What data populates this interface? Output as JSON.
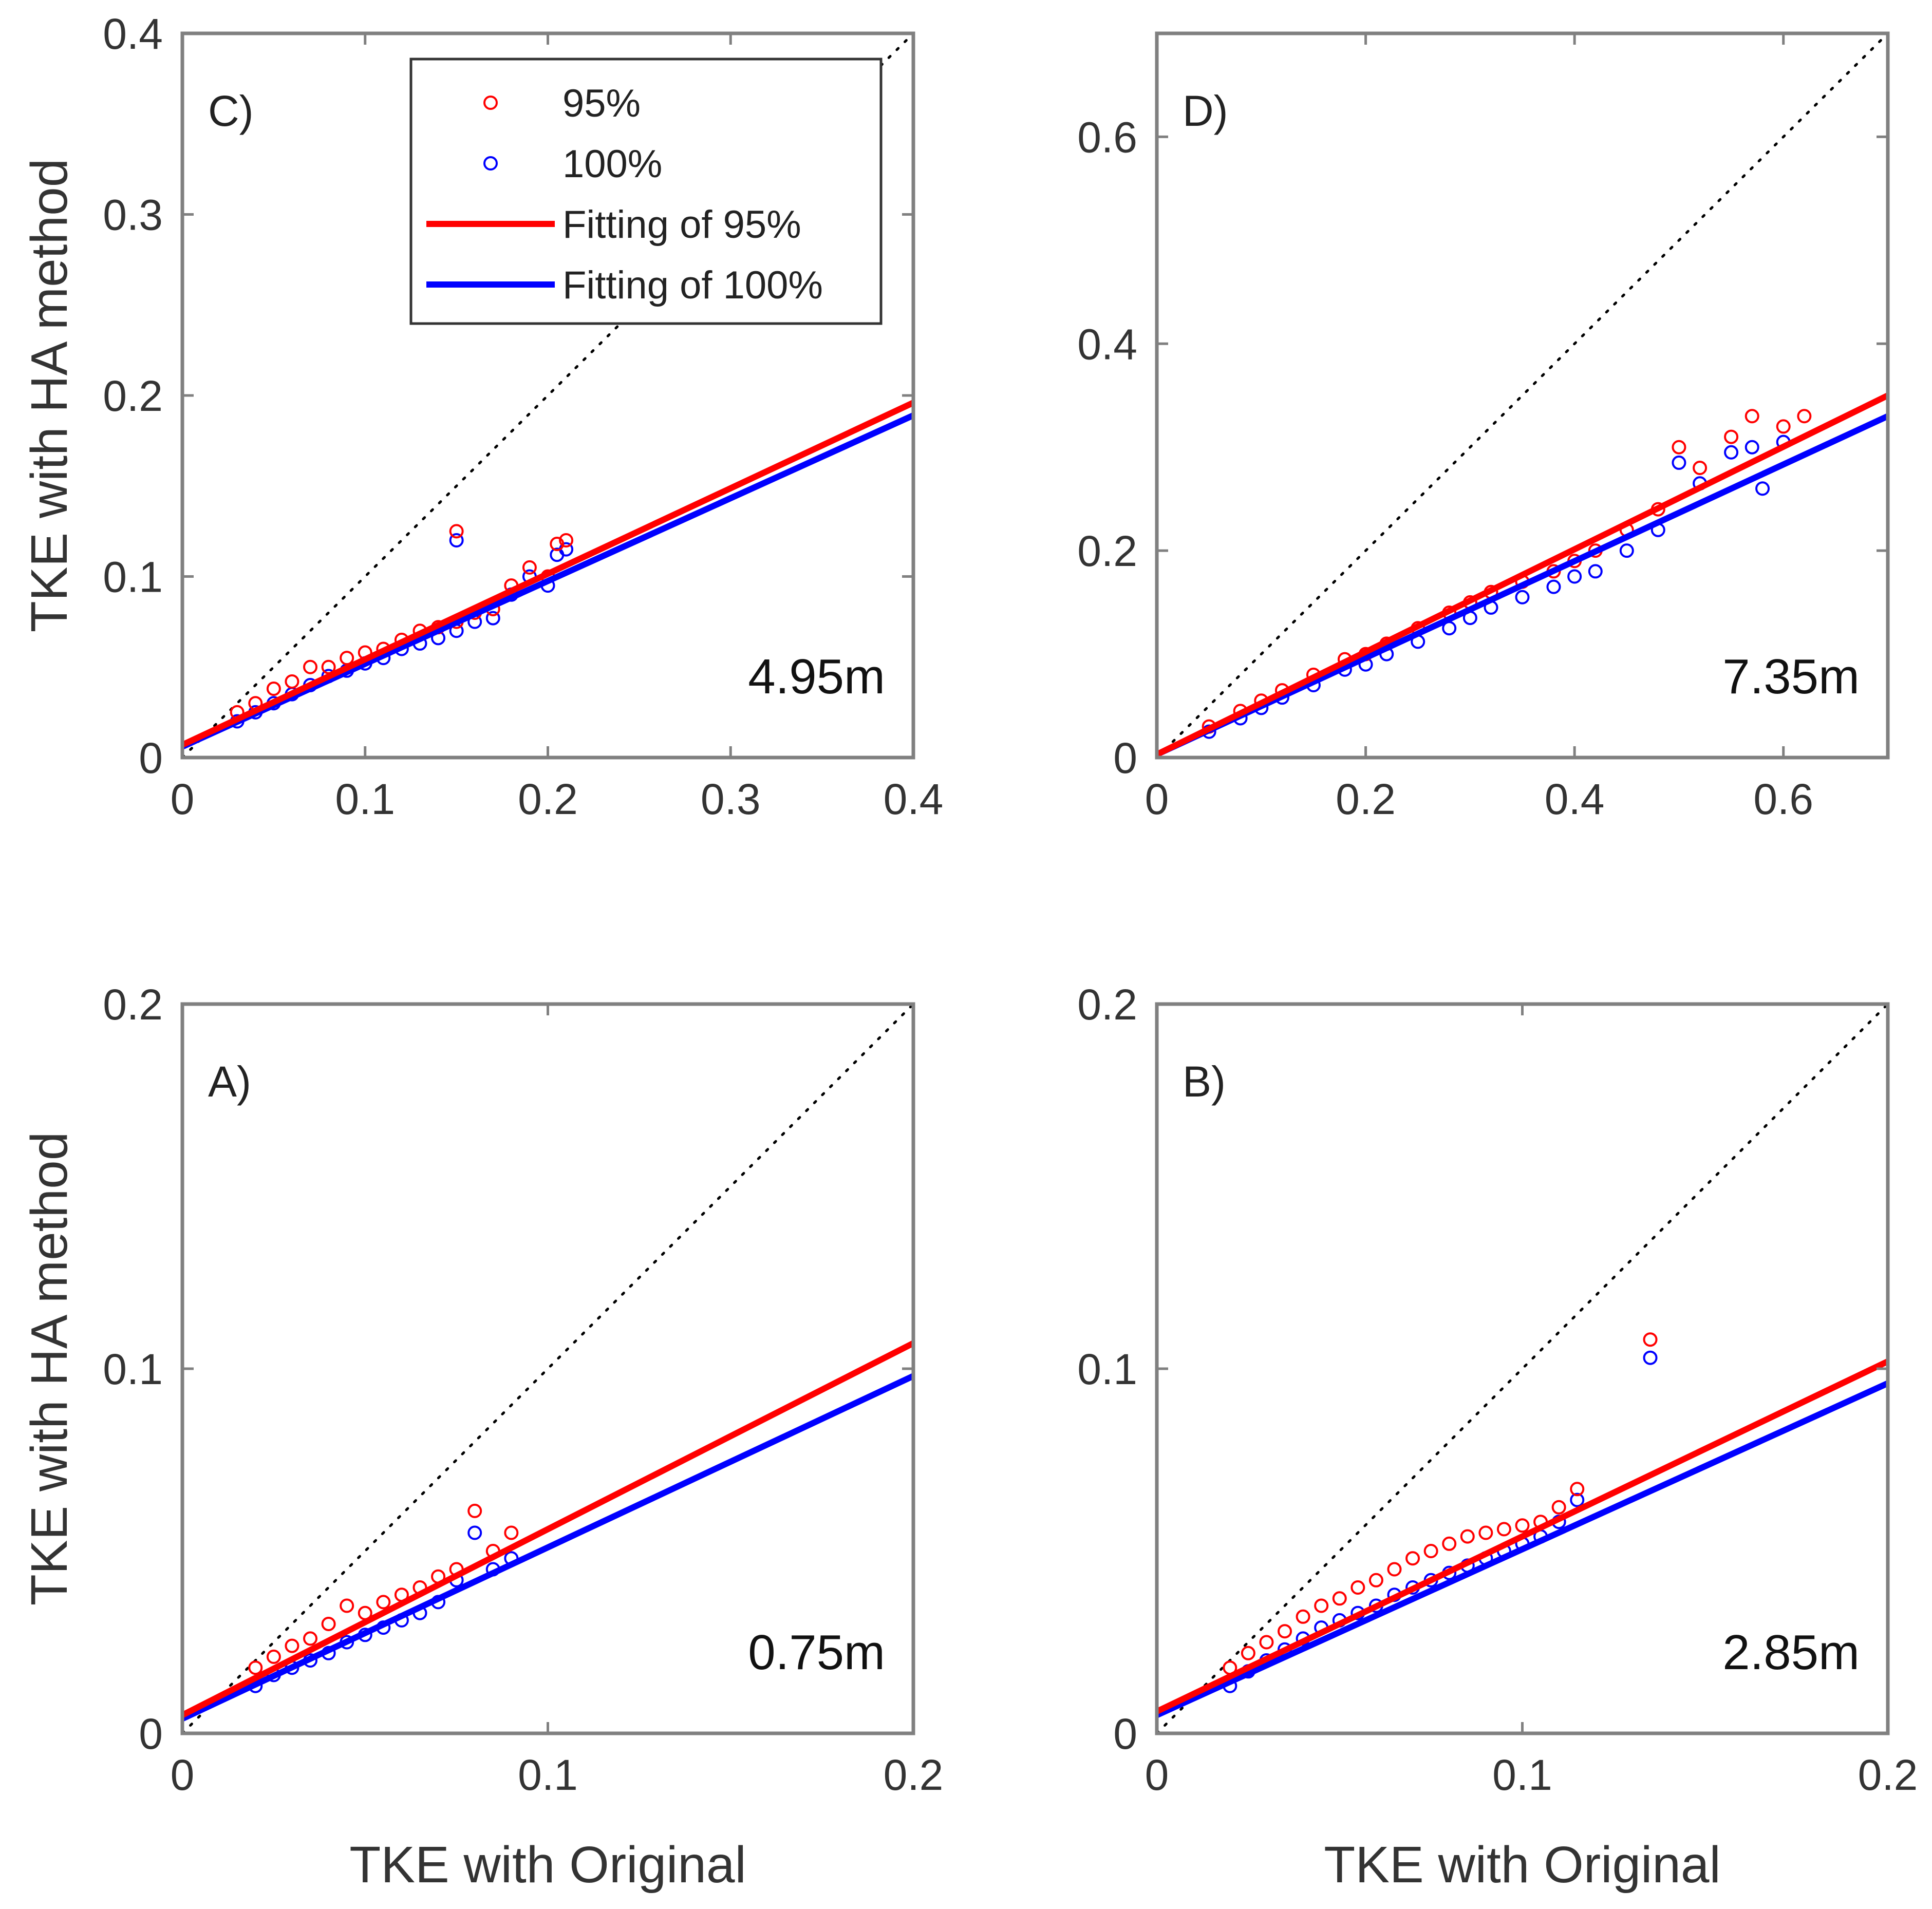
{
  "figure": {
    "colors": {
      "series_95": "#ff0000",
      "series_100": "#0000ff",
      "frame": "#808080",
      "identity": "#000000"
    },
    "legend": {
      "entries": [
        {
          "label": "95%",
          "kind": "marker",
          "color": "#ff0000"
        },
        {
          "label": "100%",
          "kind": "marker",
          "color": "#0000ff"
        },
        {
          "label": "Fitting of 95%",
          "kind": "line",
          "color": "#ff0000"
        },
        {
          "label": "Fitting of 100%",
          "kind": "line",
          "color": "#0000ff"
        }
      ]
    }
  },
  "chart_data": [
    {
      "id": "C",
      "type": "scatter",
      "panel_label": "C)",
      "height_label": "4.95m",
      "xlabel": "",
      "ylabel": "TKE with HA method",
      "xlim": [
        0,
        0.4
      ],
      "ylim": [
        0,
        0.4
      ],
      "xticks": [
        "0",
        "0.1",
        "0.2",
        "0.3",
        "0.4"
      ],
      "yticks": [
        "0",
        "0.1",
        "0.2",
        "0.3",
        "0.4"
      ],
      "identity_line": true,
      "fits": [
        {
          "name": "Fitting of 95%",
          "x": [
            0,
            0.4
          ],
          "y": [
            0.007,
            0.196
          ]
        },
        {
          "name": "Fitting of 100%",
          "x": [
            0,
            0.4
          ],
          "y": [
            0.006,
            0.189
          ]
        }
      ],
      "series": [
        {
          "name": "95%",
          "points": [
            [
              0.03,
              0.025
            ],
            [
              0.04,
              0.03
            ],
            [
              0.05,
              0.038
            ],
            [
              0.06,
              0.042
            ],
            [
              0.07,
              0.05
            ],
            [
              0.08,
              0.05
            ],
            [
              0.09,
              0.055
            ],
            [
              0.1,
              0.058
            ],
            [
              0.11,
              0.06
            ],
            [
              0.12,
              0.065
            ],
            [
              0.13,
              0.07
            ],
            [
              0.14,
              0.072
            ],
            [
              0.15,
              0.075
            ],
            [
              0.15,
              0.125
            ],
            [
              0.16,
              0.08
            ],
            [
              0.17,
              0.082
            ],
            [
              0.18,
              0.095
            ],
            [
              0.19,
              0.105
            ],
            [
              0.2,
              0.1
            ],
            [
              0.205,
              0.118
            ],
            [
              0.21,
              0.12
            ]
          ]
        },
        {
          "name": "100%",
          "points": [
            [
              0.03,
              0.02
            ],
            [
              0.04,
              0.025
            ],
            [
              0.05,
              0.03
            ],
            [
              0.06,
              0.035
            ],
            [
              0.07,
              0.04
            ],
            [
              0.08,
              0.045
            ],
            [
              0.09,
              0.048
            ],
            [
              0.1,
              0.052
            ],
            [
              0.11,
              0.055
            ],
            [
              0.12,
              0.06
            ],
            [
              0.13,
              0.063
            ],
            [
              0.14,
              0.066
            ],
            [
              0.15,
              0.07
            ],
            [
              0.15,
              0.12
            ],
            [
              0.16,
              0.075
            ],
            [
              0.17,
              0.077
            ],
            [
              0.18,
              0.09
            ],
            [
              0.19,
              0.1
            ],
            [
              0.2,
              0.095
            ],
            [
              0.205,
              0.112
            ],
            [
              0.21,
              0.115
            ]
          ]
        }
      ]
    },
    {
      "id": "D",
      "type": "scatter",
      "panel_label": "D)",
      "height_label": "7.35m",
      "xlabel": "",
      "ylabel": "",
      "xlim": [
        0,
        0.7
      ],
      "ylim": [
        0,
        0.7
      ],
      "xticks": [
        "0",
        "0.2",
        "0.4",
        "0.6"
      ],
      "yticks": [
        "0",
        "0.2",
        "0.4",
        "0.6"
      ],
      "identity_line": true,
      "fits": [
        {
          "name": "Fitting of 95%",
          "x": [
            0,
            0.7
          ],
          "y": [
            0.003,
            0.35
          ]
        },
        {
          "name": "Fitting of 100%",
          "x": [
            0,
            0.7
          ],
          "y": [
            0.003,
            0.33
          ]
        }
      ],
      "series": [
        {
          "name": "95%",
          "points": [
            [
              0.05,
              0.03
            ],
            [
              0.08,
              0.045
            ],
            [
              0.1,
              0.055
            ],
            [
              0.12,
              0.065
            ],
            [
              0.15,
              0.08
            ],
            [
              0.18,
              0.095
            ],
            [
              0.2,
              0.1
            ],
            [
              0.22,
              0.11
            ],
            [
              0.25,
              0.125
            ],
            [
              0.28,
              0.14
            ],
            [
              0.3,
              0.15
            ],
            [
              0.32,
              0.16
            ],
            [
              0.35,
              0.17
            ],
            [
              0.38,
              0.18
            ],
            [
              0.4,
              0.19
            ],
            [
              0.42,
              0.2
            ],
            [
              0.45,
              0.22
            ],
            [
              0.48,
              0.24
            ],
            [
              0.5,
              0.3
            ],
            [
              0.52,
              0.28
            ],
            [
              0.55,
              0.31
            ],
            [
              0.57,
              0.33
            ],
            [
              0.6,
              0.32
            ],
            [
              0.62,
              0.33
            ]
          ]
        },
        {
          "name": "100%",
          "points": [
            [
              0.05,
              0.025
            ],
            [
              0.08,
              0.038
            ],
            [
              0.1,
              0.048
            ],
            [
              0.12,
              0.058
            ],
            [
              0.15,
              0.07
            ],
            [
              0.18,
              0.085
            ],
            [
              0.2,
              0.09
            ],
            [
              0.22,
              0.1
            ],
            [
              0.25,
              0.112
            ],
            [
              0.28,
              0.125
            ],
            [
              0.3,
              0.135
            ],
            [
              0.32,
              0.145
            ],
            [
              0.35,
              0.155
            ],
            [
              0.38,
              0.165
            ],
            [
              0.4,
              0.175
            ],
            [
              0.42,
              0.18
            ],
            [
              0.45,
              0.2
            ],
            [
              0.48,
              0.22
            ],
            [
              0.5,
              0.285
            ],
            [
              0.52,
              0.265
            ],
            [
              0.55,
              0.295
            ],
            [
              0.57,
              0.3
            ],
            [
              0.6,
              0.305
            ],
            [
              0.58,
              0.26
            ]
          ]
        }
      ]
    },
    {
      "id": "A",
      "type": "scatter",
      "panel_label": "A)",
      "height_label": "0.75m",
      "xlabel": "TKE with Original",
      "ylabel": "TKE with HA method",
      "xlim": [
        0,
        0.2
      ],
      "ylim": [
        0,
        0.2
      ],
      "xticks": [
        "0",
        "0.1",
        "0.2"
      ],
      "yticks": [
        "0",
        "0.1",
        "0.2"
      ],
      "identity_line": true,
      "fits": [
        {
          "name": "Fitting of 95%",
          "x": [
            0,
            0.2
          ],
          "y": [
            0.005,
            0.107
          ]
        },
        {
          "name": "Fitting of 100%",
          "x": [
            0,
            0.2
          ],
          "y": [
            0.004,
            0.098
          ]
        }
      ],
      "series": [
        {
          "name": "95%",
          "points": [
            [
              0.02,
              0.018
            ],
            [
              0.025,
              0.021
            ],
            [
              0.03,
              0.024
            ],
            [
              0.035,
              0.026
            ],
            [
              0.04,
              0.03
            ],
            [
              0.045,
              0.035
            ],
            [
              0.05,
              0.033
            ],
            [
              0.055,
              0.036
            ],
            [
              0.06,
              0.038
            ],
            [
              0.065,
              0.04
            ],
            [
              0.07,
              0.043
            ],
            [
              0.075,
              0.045
            ],
            [
              0.08,
              0.061
            ],
            [
              0.085,
              0.05
            ],
            [
              0.09,
              0.055
            ]
          ]
        },
        {
          "name": "100%",
          "points": [
            [
              0.02,
              0.013
            ],
            [
              0.025,
              0.016
            ],
            [
              0.03,
              0.018
            ],
            [
              0.035,
              0.02
            ],
            [
              0.04,
              0.022
            ],
            [
              0.045,
              0.025
            ],
            [
              0.05,
              0.027
            ],
            [
              0.055,
              0.029
            ],
            [
              0.06,
              0.031
            ],
            [
              0.065,
              0.033
            ],
            [
              0.07,
              0.036
            ],
            [
              0.075,
              0.042
            ],
            [
              0.08,
              0.055
            ],
            [
              0.085,
              0.045
            ],
            [
              0.09,
              0.048
            ]
          ]
        }
      ]
    },
    {
      "id": "B",
      "type": "scatter",
      "panel_label": "B)",
      "height_label": "2.85m",
      "xlabel": "TKE with Original",
      "ylabel": "",
      "xlim": [
        0,
        0.2
      ],
      "ylim": [
        0,
        0.2
      ],
      "xticks": [
        "0",
        "0.1",
        "0.2"
      ],
      "yticks": [
        "0",
        "0.1",
        "0.2"
      ],
      "identity_line": true,
      "fits": [
        {
          "name": "Fitting of 95%",
          "x": [
            0,
            0.2
          ],
          "y": [
            0.006,
            0.102
          ]
        },
        {
          "name": "Fitting of 100%",
          "x": [
            0,
            0.2
          ],
          "y": [
            0.005,
            0.096
          ]
        }
      ],
      "series": [
        {
          "name": "95%",
          "points": [
            [
              0.02,
              0.018
            ],
            [
              0.025,
              0.022
            ],
            [
              0.03,
              0.025
            ],
            [
              0.035,
              0.028
            ],
            [
              0.04,
              0.032
            ],
            [
              0.045,
              0.035
            ],
            [
              0.05,
              0.037
            ],
            [
              0.055,
              0.04
            ],
            [
              0.06,
              0.042
            ],
            [
              0.065,
              0.045
            ],
            [
              0.07,
              0.048
            ],
            [
              0.075,
              0.05
            ],
            [
              0.08,
              0.052
            ],
            [
              0.085,
              0.054
            ],
            [
              0.09,
              0.055
            ],
            [
              0.095,
              0.056
            ],
            [
              0.1,
              0.057
            ],
            [
              0.105,
              0.058
            ],
            [
              0.11,
              0.062
            ],
            [
              0.115,
              0.067
            ],
            [
              0.135,
              0.108
            ]
          ]
        },
        {
          "name": "100%",
          "points": [
            [
              0.02,
              0.013
            ],
            [
              0.025,
              0.017
            ],
            [
              0.03,
              0.02
            ],
            [
              0.035,
              0.023
            ],
            [
              0.04,
              0.026
            ],
            [
              0.045,
              0.029
            ],
            [
              0.05,
              0.031
            ],
            [
              0.055,
              0.033
            ],
            [
              0.06,
              0.035
            ],
            [
              0.065,
              0.038
            ],
            [
              0.07,
              0.04
            ],
            [
              0.075,
              0.042
            ],
            [
              0.08,
              0.044
            ],
            [
              0.085,
              0.046
            ],
            [
              0.09,
              0.048
            ],
            [
              0.095,
              0.05
            ],
            [
              0.1,
              0.052
            ],
            [
              0.105,
              0.054
            ],
            [
              0.11,
              0.058
            ],
            [
              0.115,
              0.064
            ],
            [
              0.135,
              0.103
            ]
          ]
        }
      ]
    }
  ]
}
